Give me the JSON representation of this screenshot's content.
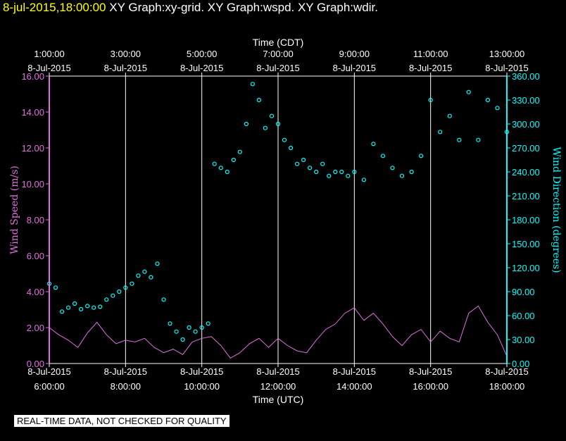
{
  "header": {
    "timestamp": "8-jul-2015,18:00:00",
    "graphs": "XY Graph:xy-grid.  XY Graph:wspd.  XY Graph:wdir."
  },
  "disclaimer": "REAL-TIME DATA, NOT CHECKED FOR QUALITY",
  "colors": {
    "background": "#000000",
    "frame": "#ffffff",
    "wind_speed": "#e070e0",
    "wind_direction": "#00ffff",
    "header_timestamp": "#ffff00"
  },
  "chart_data": {
    "type": "line",
    "grid": true,
    "x_top": {
      "label": "Time (CDT)",
      "ticks": [
        {
          "value": "2015-07-08T06:00",
          "time": "1:00:00",
          "date": "8-Jul-2015"
        },
        {
          "value": "2015-07-08T08:00",
          "time": "3:00:00",
          "date": "8-Jul-2015"
        },
        {
          "value": "2015-07-08T10:00",
          "time": "5:00:00",
          "date": "8-Jul-2015"
        },
        {
          "value": "2015-07-08T12:00",
          "time": "7:00:00",
          "date": "8-Jul-2015"
        },
        {
          "value": "2015-07-08T14:00",
          "time": "9:00:00",
          "date": "8-Jul-2015"
        },
        {
          "value": "2015-07-08T16:00",
          "time": "11:00:00",
          "date": "8-Jul-2015"
        },
        {
          "value": "2015-07-08T18:00",
          "time": "13:00:00",
          "date": "8-Jul-2015"
        }
      ]
    },
    "x_bottom": {
      "label": "Time (UTC)",
      "range": [
        "2015-07-08T06:00",
        "2015-07-08T18:00"
      ],
      "ticks": [
        {
          "value": "2015-07-08T06:00",
          "date": "8-Jul-2015",
          "time": "6:00:00"
        },
        {
          "value": "2015-07-08T08:00",
          "date": "8-Jul-2015",
          "time": "8:00:00"
        },
        {
          "value": "2015-07-08T10:00",
          "date": "8-Jul-2015",
          "time": "10:00:00"
        },
        {
          "value": "2015-07-08T12:00",
          "date": "8-Jul-2015",
          "time": "12:00:00"
        },
        {
          "value": "2015-07-08T14:00",
          "date": "8-Jul-2015",
          "time": "14:00:00"
        },
        {
          "value": "2015-07-08T16:00",
          "date": "8-Jul-2015",
          "time": "16:00:00"
        },
        {
          "value": "2015-07-08T18:00",
          "date": "8-Jul-2015",
          "time": "18:00:00"
        }
      ]
    },
    "y_left": {
      "label": "Wind Speed (m/s)",
      "range": [
        0,
        16
      ],
      "ticks": [
        "0.00",
        "2.00",
        "4.00",
        "6.00",
        "8.00",
        "10.00",
        "12.00",
        "14.00",
        "16.00"
      ]
    },
    "y_right": {
      "label": "Wind Direction (degrees)",
      "range": [
        0,
        360
      ],
      "ticks": [
        "0.00",
        "30.00",
        "60.00",
        "90.00",
        "120.00",
        "150.00",
        "180.00",
        "210.00",
        "240.00",
        "270.00",
        "300.00",
        "330.00",
        "360.00"
      ]
    },
    "series": [
      {
        "key": "wind_speed",
        "style": "line",
        "axis": "left",
        "x": [
          "2015-07-08T06:00",
          "2015-07-08T06:15",
          "2015-07-08T06:30",
          "2015-07-08T06:45",
          "2015-07-08T07:00",
          "2015-07-08T07:15",
          "2015-07-08T07:30",
          "2015-07-08T07:45",
          "2015-07-08T08:00",
          "2015-07-08T08:15",
          "2015-07-08T08:30",
          "2015-07-08T08:45",
          "2015-07-08T09:00",
          "2015-07-08T09:15",
          "2015-07-08T09:30",
          "2015-07-08T09:45",
          "2015-07-08T10:00",
          "2015-07-08T10:15",
          "2015-07-08T10:30",
          "2015-07-08T10:45",
          "2015-07-08T11:00",
          "2015-07-08T11:15",
          "2015-07-08T11:30",
          "2015-07-08T11:45",
          "2015-07-08T12:00",
          "2015-07-08T12:15",
          "2015-07-08T12:30",
          "2015-07-08T12:45",
          "2015-07-08T13:00",
          "2015-07-08T13:15",
          "2015-07-08T13:30",
          "2015-07-08T13:45",
          "2015-07-08T14:00",
          "2015-07-08T14:15",
          "2015-07-08T14:30",
          "2015-07-08T14:45",
          "2015-07-08T15:00",
          "2015-07-08T15:15",
          "2015-07-08T15:30",
          "2015-07-08T15:45",
          "2015-07-08T16:00",
          "2015-07-08T16:15",
          "2015-07-08T16:30",
          "2015-07-08T16:45",
          "2015-07-08T17:00",
          "2015-07-08T17:15",
          "2015-07-08T17:30",
          "2015-07-08T17:45",
          "2015-07-08T18:00"
        ],
        "values": [
          2.0,
          1.6,
          1.3,
          0.9,
          1.7,
          2.3,
          1.6,
          1.1,
          1.3,
          1.2,
          1.4,
          0.9,
          0.6,
          0.8,
          0.5,
          1.2,
          1.4,
          1.5,
          1.0,
          0.3,
          0.6,
          1.1,
          1.4,
          0.9,
          1.4,
          1.0,
          0.7,
          0.6,
          1.3,
          1.9,
          2.2,
          2.8,
          3.1,
          2.4,
          2.8,
          2.2,
          1.5,
          1.0,
          1.6,
          1.9,
          1.2,
          1.8,
          1.4,
          1.2,
          2.8,
          3.2,
          2.3,
          1.6,
          0.4
        ]
      },
      {
        "key": "wind_direction",
        "style": "points",
        "axis": "right",
        "x": [
          "2015-07-08T06:00",
          "2015-07-08T06:10",
          "2015-07-08T06:20",
          "2015-07-08T06:30",
          "2015-07-08T06:40",
          "2015-07-08T06:50",
          "2015-07-08T07:00",
          "2015-07-08T07:10",
          "2015-07-08T07:20",
          "2015-07-08T07:30",
          "2015-07-08T07:40",
          "2015-07-08T07:50",
          "2015-07-08T08:00",
          "2015-07-08T08:10",
          "2015-07-08T08:20",
          "2015-07-08T08:30",
          "2015-07-08T08:40",
          "2015-07-08T08:50",
          "2015-07-08T09:00",
          "2015-07-08T09:10",
          "2015-07-08T09:20",
          "2015-07-08T09:30",
          "2015-07-08T09:40",
          "2015-07-08T09:50",
          "2015-07-08T10:00",
          "2015-07-08T10:10",
          "2015-07-08T10:20",
          "2015-07-08T10:30",
          "2015-07-08T10:40",
          "2015-07-08T10:50",
          "2015-07-08T11:00",
          "2015-07-08T11:10",
          "2015-07-08T11:20",
          "2015-07-08T11:30",
          "2015-07-08T11:40",
          "2015-07-08T11:50",
          "2015-07-08T12:00",
          "2015-07-08T12:10",
          "2015-07-08T12:20",
          "2015-07-08T12:30",
          "2015-07-08T12:40",
          "2015-07-08T12:50",
          "2015-07-08T13:00",
          "2015-07-08T13:10",
          "2015-07-08T13:20",
          "2015-07-08T13:30",
          "2015-07-08T13:40",
          "2015-07-08T13:50",
          "2015-07-08T14:00",
          "2015-07-08T14:15",
          "2015-07-08T14:30",
          "2015-07-08T14:45",
          "2015-07-08T15:00",
          "2015-07-08T15:15",
          "2015-07-08T15:30",
          "2015-07-08T15:45",
          "2015-07-08T16:00",
          "2015-07-08T16:15",
          "2015-07-08T16:30",
          "2015-07-08T16:45",
          "2015-07-08T17:00",
          "2015-07-08T17:15",
          "2015-07-08T17:30",
          "2015-07-08T17:45",
          "2015-07-08T18:00"
        ],
        "values": [
          100,
          95,
          65,
          70,
          75,
          68,
          72,
          70,
          71,
          80,
          85,
          90,
          95,
          100,
          110,
          115,
          108,
          125,
          80,
          50,
          40,
          30,
          45,
          40,
          45,
          50,
          250,
          245,
          240,
          255,
          265,
          300,
          350,
          330,
          295,
          310,
          300,
          280,
          270,
          250,
          255,
          245,
          240,
          250,
          235,
          240,
          240,
          235,
          240,
          230,
          275,
          260,
          245,
          235,
          240,
          260,
          330,
          290,
          310,
          280,
          340,
          280,
          330,
          320,
          290
        ]
      }
    ]
  }
}
